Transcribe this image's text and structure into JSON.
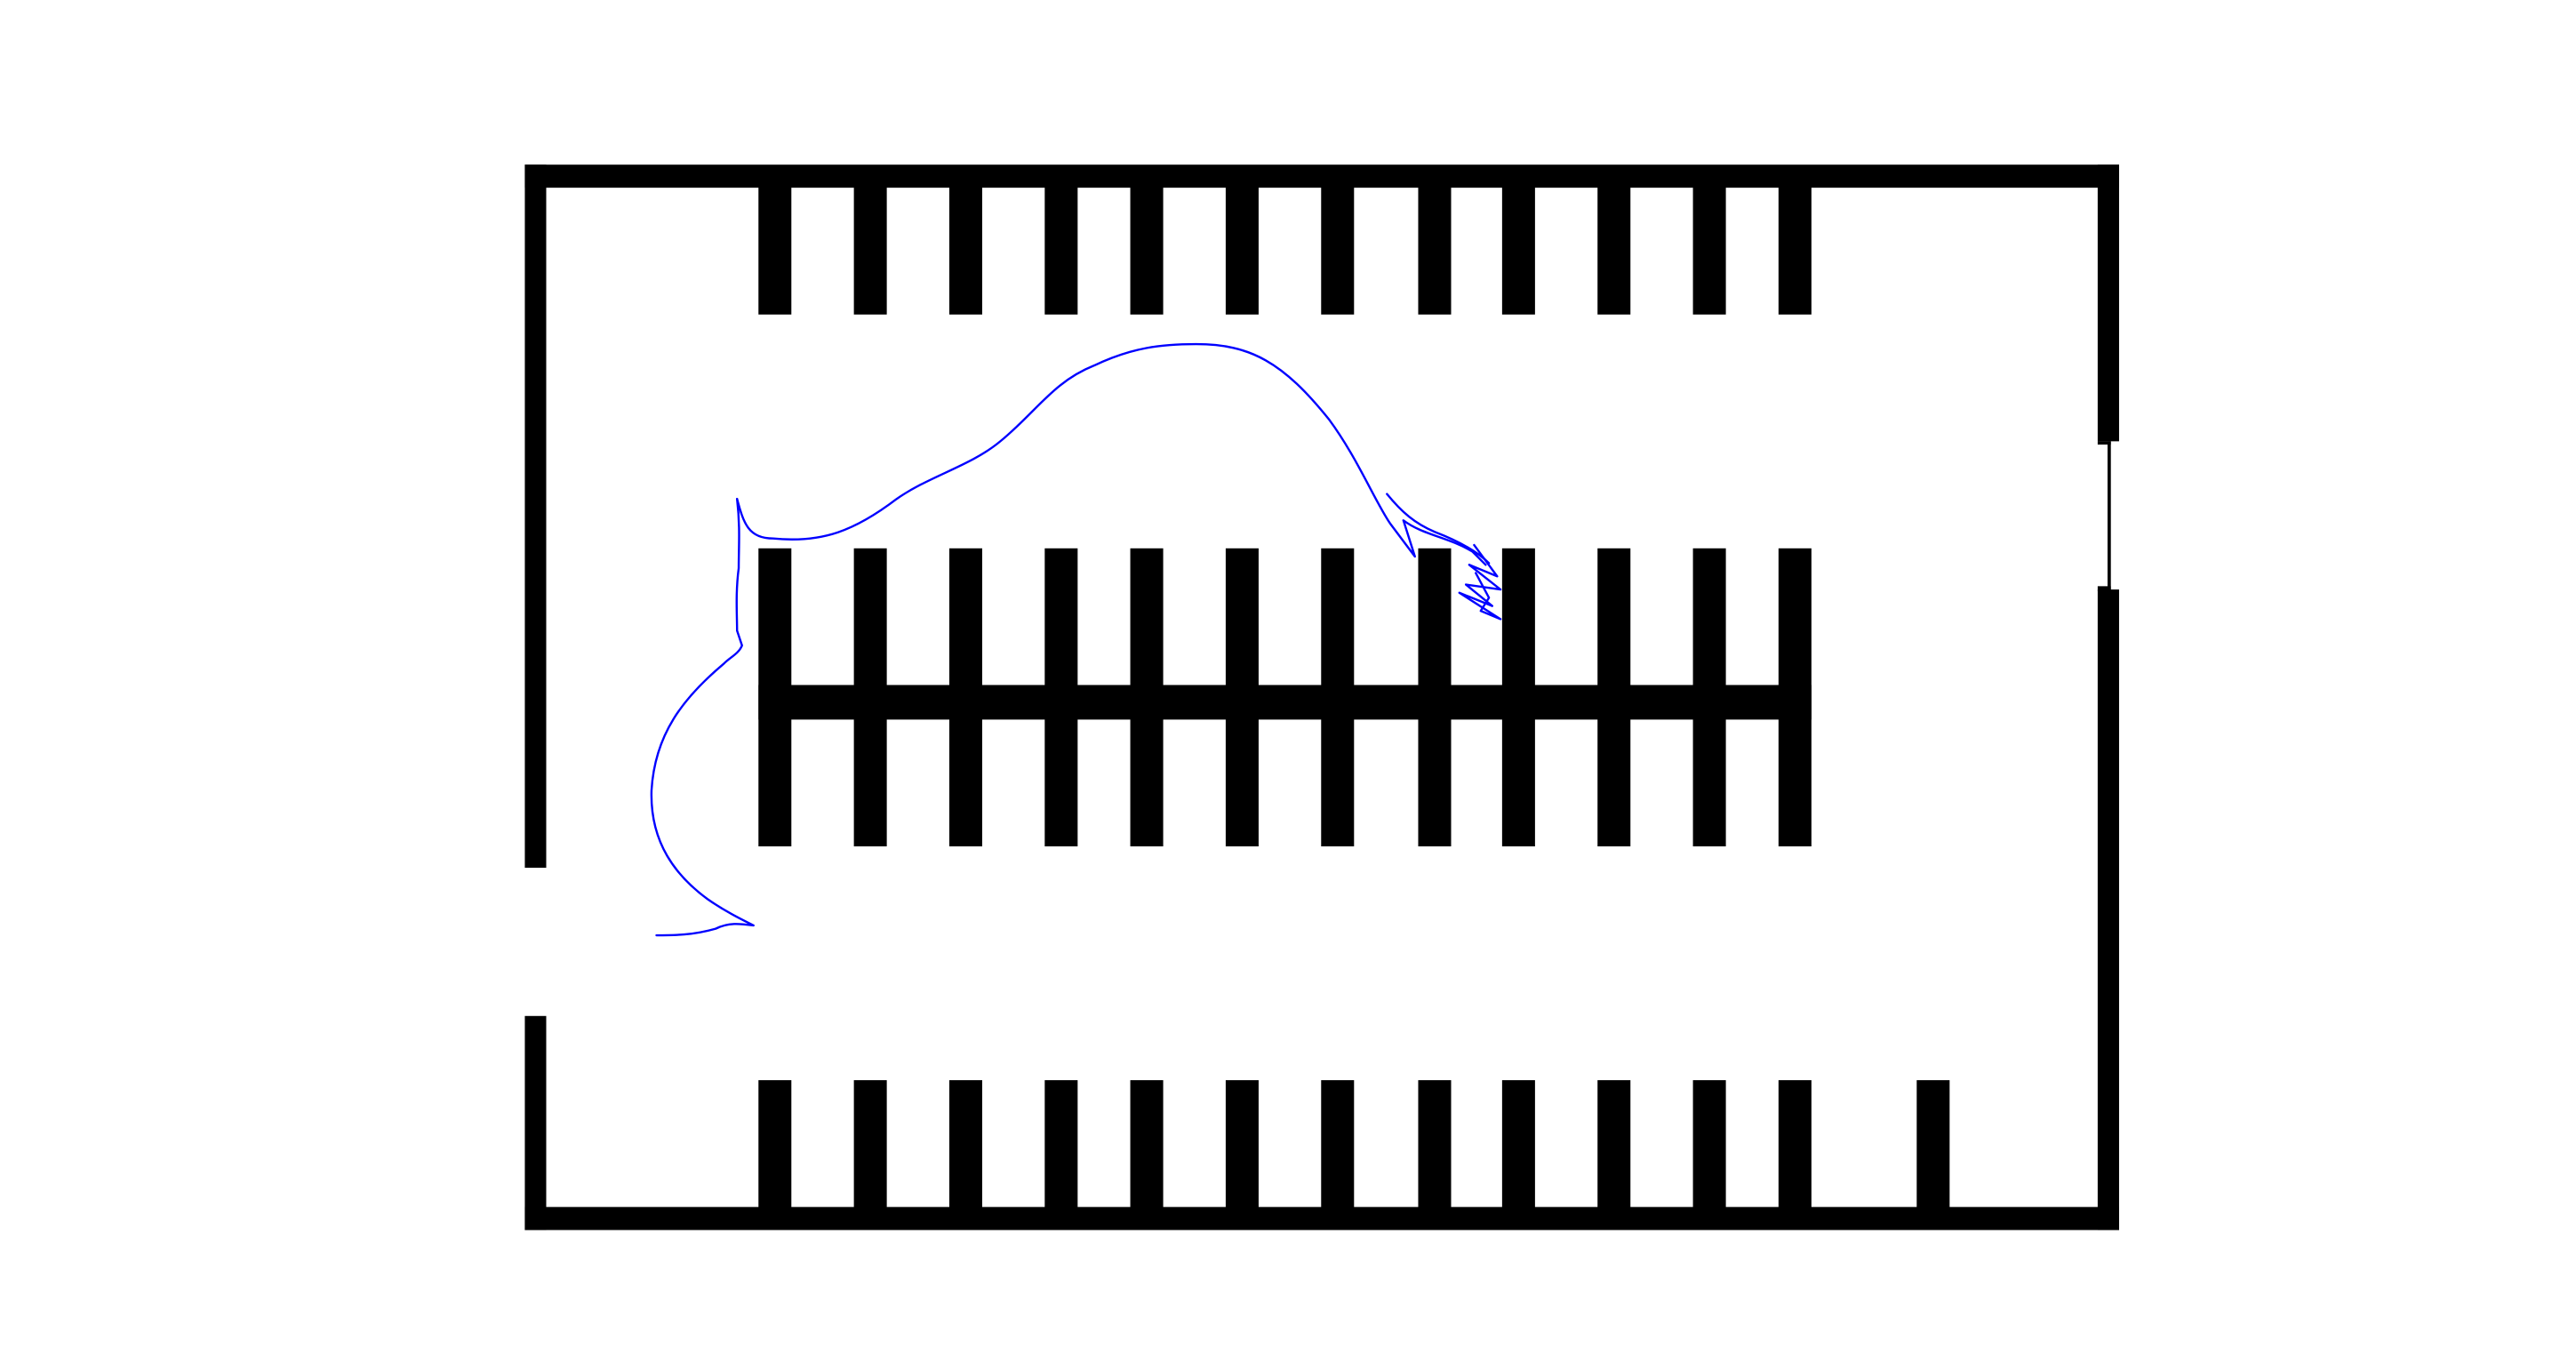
{
  "diagram": {
    "wall_color": "#000000",
    "path_color": "#0000ff",
    "background_color": "#ffffff",
    "top_row_stall_count": 11,
    "middle_island_stall_count": 22,
    "bottom_row_stall_count": 12
  }
}
